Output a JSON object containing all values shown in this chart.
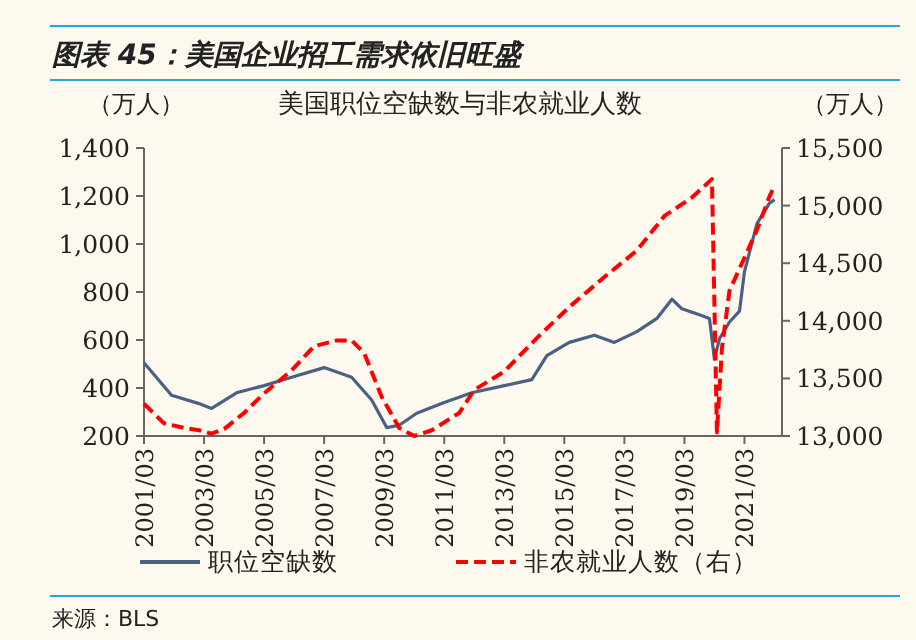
{
  "chart_data": {
    "type": "line",
    "title": "图表 45：美国企业招工需求依旧旺盛",
    "subtitle": "美国职位空缺数与非农就业人数",
    "ylabel": "（万人）",
    "y2label": "（万人）",
    "annotations": [
      "来源：BLS"
    ],
    "xlim": [
      "2001-03",
      "2022-06"
    ],
    "xticks": [
      {
        "value": "2001-03",
        "label": "2001/03"
      },
      {
        "value": "2003-03",
        "label": "2003/03"
      },
      {
        "value": "2005-03",
        "label": "2005/03"
      },
      {
        "value": "2007-03",
        "label": "2007/03"
      },
      {
        "value": "2009-03",
        "label": "2009/03"
      },
      {
        "value": "2011-03",
        "label": "2011/03"
      },
      {
        "value": "2013-03",
        "label": "2013/03"
      },
      {
        "value": "2015-03",
        "label": "2015/03"
      },
      {
        "value": "2017-03",
        "label": "2017/03"
      },
      {
        "value": "2019-03",
        "label": "2019/03"
      },
      {
        "value": "2021-03",
        "label": "2021/03"
      }
    ],
    "ylim": [
      200,
      1400
    ],
    "yticks": [
      200,
      400,
      600,
      800,
      {
        "value": 1000,
        "label": "1,000"
      },
      {
        "value": 1200,
        "label": "1,200"
      },
      {
        "value": 1400,
        "label": "1,400"
      }
    ],
    "y2lim": [
      13000,
      15500
    ],
    "y2ticks": [
      {
        "value": 13000,
        "label": "13,000"
      },
      {
        "value": 13500,
        "label": "13,500"
      },
      {
        "value": 14000,
        "label": "14,000"
      },
      {
        "value": 14500,
        "label": "14,500"
      },
      {
        "value": 15000,
        "label": "15,000"
      },
      {
        "value": 15500,
        "label": "15,500"
      }
    ],
    "grid": false,
    "legend": "bottom",
    "series": [
      {
        "name": "职位空缺数",
        "color": "#4a6184",
        "line_style": "solid",
        "x": [
          "2001-03",
          "2002-02",
          "2003-01",
          "2003-06",
          "2004-04",
          "2005-03",
          "2006-02",
          "2007-03",
          "2008-02",
          "2008-10",
          "2009-04",
          "2009-09",
          "2010-04",
          "2011-03",
          "2012-02",
          "2013-03",
          "2014-02",
          "2014-08",
          "2015-05",
          "2016-03",
          "2016-11",
          "2017-08",
          "2018-04",
          "2018-10",
          "2019-02",
          "2019-09",
          "2020-01",
          "2020-03",
          "2020-05",
          "2020-09",
          "2021-01",
          "2021-03",
          "2021-08",
          "2022-01",
          "2022-03"
        ],
        "values": [
          505,
          370,
          335,
          315,
          380,
          410,
          445,
          485,
          445,
          350,
          235,
          245,
          295,
          340,
          380,
          410,
          435,
          535,
          590,
          620,
          590,
          635,
          690,
          770,
          730,
          705,
          690,
          520,
          605,
          675,
          720,
          885,
          1085,
          1170,
          1185
        ]
      },
      {
        "name": "非农就业人数（右）",
        "color": "#ff0000",
        "line_style": "dashed",
        "axis": "y2",
        "x": [
          "2001-03",
          "2001-11",
          "2002-07",
          "2003-01",
          "2003-06",
          "2003-11",
          "2004-07",
          "2005-03",
          "2006-02",
          "2006-11",
          "2007-08",
          "2008-02",
          "2008-07",
          "2009-02",
          "2009-09",
          "2010-03",
          "2010-10",
          "2011-09",
          "2012-03",
          "2013-03",
          "2014-04",
          "2015-05",
          "2016-07",
          "2017-08",
          "2018-07",
          "2019-06",
          "2020-02",
          "2020-04",
          "2020-06",
          "2020-09",
          "2021-02",
          "2021-08",
          "2022-01",
          "2022-03"
        ],
        "values": [
          13280,
          13110,
          13070,
          13050,
          13020,
          13060,
          13200,
          13370,
          13570,
          13780,
          13830,
          13830,
          13720,
          13340,
          13070,
          13000,
          13050,
          13200,
          13400,
          13560,
          13850,
          14120,
          14380,
          14610,
          14910,
          15070,
          15230,
          13030,
          13760,
          14260,
          14500,
          14790,
          15080,
          15170
        ]
      }
    ]
  }
}
